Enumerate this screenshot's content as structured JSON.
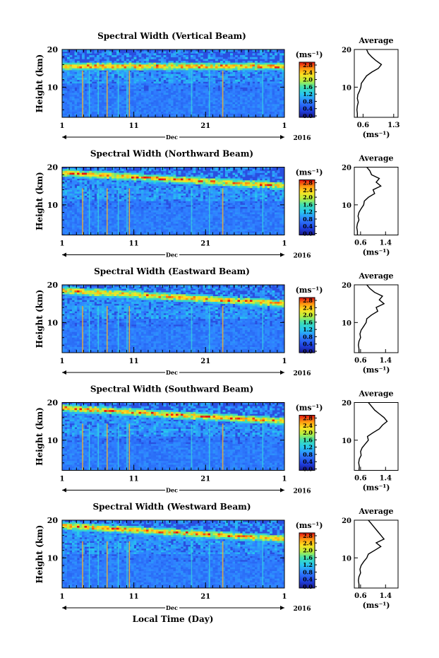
{
  "figure": {
    "xlabel": "Local Time (Day)"
  },
  "chart_data": [
    {
      "type": "heatmap",
      "title": "Spectral Width (Vertical Beam)",
      "ylabel": "Height (km)",
      "ylim": [
        2,
        20
      ],
      "yticks": [
        "10",
        "20"
      ],
      "xticks": [
        "1",
        "11",
        "21",
        "1"
      ],
      "month": "Dec",
      "year": "2016",
      "colorbar": {
        "unit": "(ms⁻¹)",
        "ticks": [
          "2.8",
          "2.4",
          "2.0",
          "1.6",
          "1.2",
          "0.8",
          "0.4",
          "0.0"
        ],
        "range": [
          0.0,
          2.8
        ]
      },
      "average": {
        "title": "Average",
        "xlabel": "(ms⁻¹)",
        "xticks": [
          "0.6",
          "1.3"
        ],
        "xlim": [
          0.4,
          1.4
        ],
        "yticks": [
          "10",
          "20"
        ],
        "profile": [
          [
            0.47,
            2
          ],
          [
            0.47,
            3
          ],
          [
            0.46,
            4
          ],
          [
            0.47,
            5
          ],
          [
            0.49,
            6
          ],
          [
            0.47,
            7
          ],
          [
            0.48,
            8
          ],
          [
            0.52,
            9
          ],
          [
            0.55,
            10
          ],
          [
            0.56,
            11
          ],
          [
            0.62,
            12
          ],
          [
            0.68,
            13
          ],
          [
            0.8,
            14
          ],
          [
            0.95,
            15
          ],
          [
            1.02,
            16
          ],
          [
            0.9,
            17
          ],
          [
            0.8,
            18
          ],
          [
            0.72,
            19
          ],
          [
            0.68,
            20
          ]
        ]
      }
    },
    {
      "type": "heatmap",
      "title": "Spectral Width (Northward Beam)",
      "ylabel": "Height (km)",
      "ylim": [
        2,
        20
      ],
      "yticks": [
        "10",
        "20"
      ],
      "xticks": [
        "1",
        "11",
        "21",
        "1"
      ],
      "month": "Dec",
      "year": "2016",
      "colorbar": {
        "unit": "(ms⁻¹)",
        "ticks": [
          "2.8",
          "2.4",
          "2.0",
          "1.6",
          "1.2",
          "0.8",
          "0.4",
          "0.0"
        ],
        "range": [
          0.0,
          2.8
        ]
      },
      "average": {
        "title": "Average",
        "xlabel": "(ms⁻¹)",
        "xticks": [
          "0.6",
          "1.4"
        ],
        "xlim": [
          0.4,
          1.8
        ],
        "yticks": [
          "10",
          "20"
        ],
        "profile": [
          [
            0.5,
            2
          ],
          [
            0.5,
            3
          ],
          [
            0.48,
            4
          ],
          [
            0.5,
            5
          ],
          [
            0.55,
            6
          ],
          [
            0.52,
            7
          ],
          [
            0.55,
            8
          ],
          [
            0.62,
            9
          ],
          [
            0.7,
            10
          ],
          [
            0.72,
            11
          ],
          [
            0.85,
            12
          ],
          [
            1.05,
            13
          ],
          [
            1.0,
            14
          ],
          [
            1.25,
            15
          ],
          [
            1.1,
            16
          ],
          [
            1.2,
            17
          ],
          [
            0.95,
            18
          ],
          [
            0.9,
            19
          ],
          [
            0.8,
            20
          ]
        ]
      }
    },
    {
      "type": "heatmap",
      "title": "Spectral Width (Eastward Beam)",
      "ylabel": "Height (km)",
      "ylim": [
        2,
        20
      ],
      "yticks": [
        "10",
        "20"
      ],
      "xticks": [
        "1",
        "11",
        "21",
        "1"
      ],
      "month": "Dec",
      "year": "2016",
      "colorbar": {
        "unit": "(ms⁻¹)",
        "ticks": [
          "2.8",
          "2.4",
          "2.0",
          "1.6",
          "1.2",
          "0.8",
          "0.4",
          "0.0"
        ],
        "range": [
          0.0,
          2.8
        ]
      },
      "average": {
        "title": "Average",
        "xlabel": "(ms⁻¹)",
        "xticks": [
          "0.6",
          "1.4"
        ],
        "xlim": [
          0.4,
          1.8
        ],
        "yticks": [
          "10",
          "20"
        ],
        "profile": [
          [
            0.55,
            2
          ],
          [
            0.55,
            3
          ],
          [
            0.53,
            4
          ],
          [
            0.55,
            5
          ],
          [
            0.6,
            6
          ],
          [
            0.58,
            7
          ],
          [
            0.62,
            8
          ],
          [
            0.7,
            9
          ],
          [
            0.78,
            10
          ],
          [
            0.8,
            11
          ],
          [
            0.95,
            12
          ],
          [
            1.15,
            13
          ],
          [
            1.1,
            14
          ],
          [
            1.35,
            15
          ],
          [
            1.2,
            16
          ],
          [
            1.3,
            17
          ],
          [
            1.05,
            18
          ],
          [
            0.9,
            19
          ],
          [
            0.8,
            20
          ]
        ]
      }
    },
    {
      "type": "heatmap",
      "title": "Spectral Width (Southward Beam)",
      "ylabel": "Height (km)",
      "ylim": [
        2,
        20
      ],
      "yticks": [
        "10",
        "20"
      ],
      "xticks": [
        "1",
        "11",
        "21",
        "1"
      ],
      "month": "Dec",
      "year": "2016",
      "colorbar": {
        "unit": "(ms⁻¹)",
        "ticks": [
          "2.8",
          "2.4",
          "2.0",
          "1.6",
          "1.2",
          "0.8",
          "0.4",
          "0.0"
        ],
        "range": [
          0.0,
          2.8
        ]
      },
      "average": {
        "title": "Average",
        "xlabel": "(ms⁻¹)",
        "xticks": [
          "0.6",
          "1.4"
        ],
        "xlim": [
          0.4,
          1.8
        ],
        "yticks": [
          "10",
          "20"
        ],
        "profile": [
          [
            0.55,
            2
          ],
          [
            0.56,
            3
          ],
          [
            0.54,
            4
          ],
          [
            0.56,
            5
          ],
          [
            0.62,
            6
          ],
          [
            0.6,
            7
          ],
          [
            0.65,
            8
          ],
          [
            0.75,
            9
          ],
          [
            0.85,
            10
          ],
          [
            0.82,
            11
          ],
          [
            1.0,
            12
          ],
          [
            1.2,
            13
          ],
          [
            1.3,
            14
          ],
          [
            1.45,
            15
          ],
          [
            1.35,
            16
          ],
          [
            1.2,
            17
          ],
          [
            1.05,
            18
          ],
          [
            0.95,
            19
          ],
          [
            0.85,
            20
          ]
        ]
      }
    },
    {
      "type": "heatmap",
      "title": "Spectral Width (Westward Beam)",
      "ylabel": "Height (km)",
      "ylim": [
        2,
        20
      ],
      "yticks": [
        "10",
        "20"
      ],
      "xticks": [
        "1",
        "11",
        "21",
        "1"
      ],
      "month": "Dec",
      "year": "2016",
      "colorbar": {
        "unit": "(ms⁻¹)",
        "ticks": [
          "2.8",
          "2.4",
          "2.0",
          "1.6",
          "1.2",
          "0.8",
          "0.4",
          "0.0"
        ],
        "range": [
          0.0,
          2.8
        ]
      },
      "average": {
        "title": "Average",
        "xlabel": "(ms⁻¹)",
        "xticks": [
          "0.6",
          "1.4"
        ],
        "xlim": [
          0.4,
          1.8
        ],
        "yticks": [
          "10",
          "20"
        ],
        "profile": [
          [
            0.55,
            2
          ],
          [
            0.55,
            3
          ],
          [
            0.53,
            4
          ],
          [
            0.55,
            5
          ],
          [
            0.6,
            6
          ],
          [
            0.58,
            7
          ],
          [
            0.62,
            8
          ],
          [
            0.7,
            9
          ],
          [
            0.8,
            10
          ],
          [
            0.85,
            11
          ],
          [
            1.05,
            12
          ],
          [
            1.25,
            13
          ],
          [
            1.1,
            14
          ],
          [
            1.35,
            15
          ],
          [
            1.25,
            16
          ],
          [
            1.15,
            17
          ],
          [
            1.05,
            18
          ],
          [
            0.95,
            19
          ],
          [
            0.85,
            20
          ]
        ]
      }
    }
  ]
}
